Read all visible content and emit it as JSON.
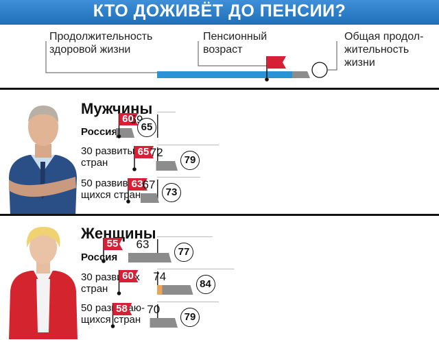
{
  "title": "КТО ДОЖИВЁТ ДО ПЕНСИИ?",
  "legend": {
    "healthy": "Продолжительность здоровой жизни",
    "pension": "Пенсионный возраст",
    "total": "Общая продол-жительность жизни"
  },
  "colors": {
    "men_bar": "#2a93d5",
    "women_bar": "#eca458",
    "gray_bar": "#8c8c8c",
    "flag": "#d71f35",
    "title_band": "#2b7fc9"
  },
  "chart_data": {
    "type": "bar",
    "groups": [
      {
        "name": "Мужчины",
        "rows": [
          {
            "label": "Россия",
            "healthy": 59,
            "pension": 60,
            "total": 65
          },
          {
            "label": "30 развитых стран",
            "healthy": 72,
            "pension": 65,
            "total": 79
          },
          {
            "label": "50 развиваю-щихся стран",
            "healthy": 67,
            "pension": 63,
            "total": 73
          }
        ]
      },
      {
        "name": "Женщины",
        "rows": [
          {
            "label": "Россия",
            "healthy": 63,
            "pension": 55,
            "total": 77
          },
          {
            "label": "30 развитых стран",
            "healthy": 74,
            "pension": 60,
            "total": 84
          },
          {
            "label": "50 развиваю-щихся стран",
            "healthy": 70,
            "pension": 58,
            "total": 79
          }
        ]
      }
    ]
  }
}
